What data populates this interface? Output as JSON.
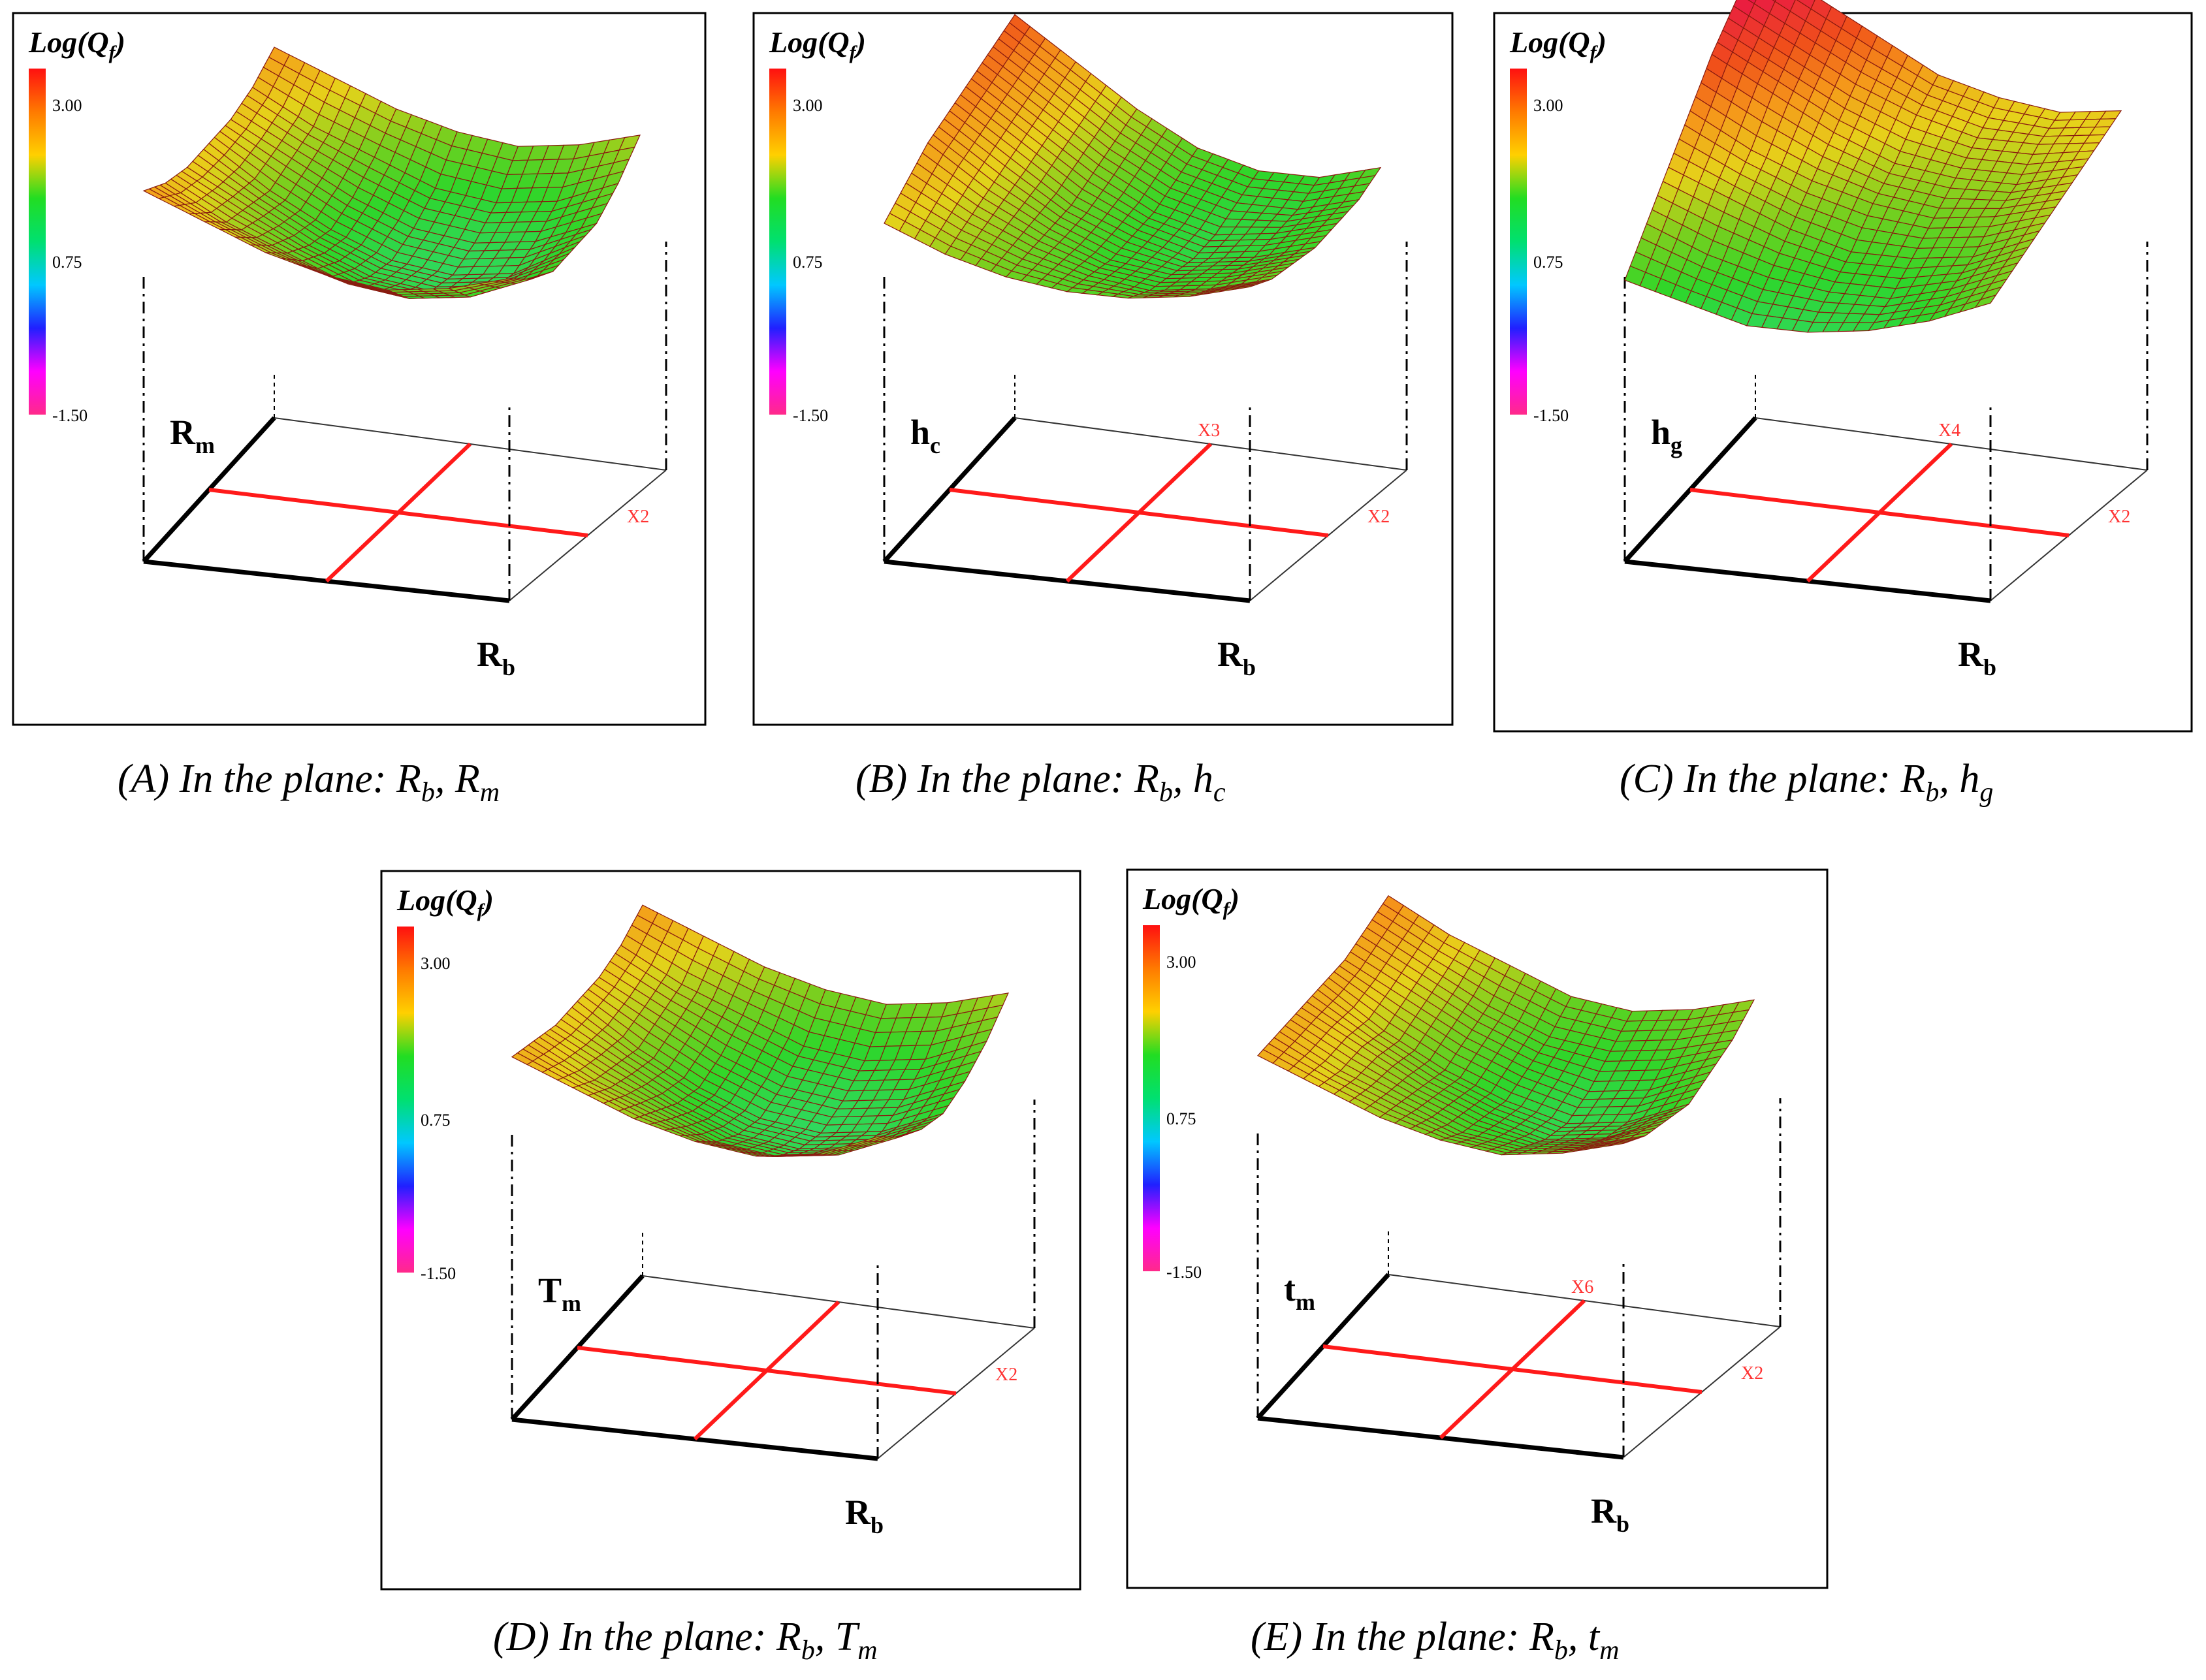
{
  "figure": {
    "colorbar": {
      "title": "Log(Q",
      "title_sub": "f",
      "title_close": ")",
      "ticks": [
        "3.00",
        "0.75",
        "-1.50"
      ],
      "stops": [
        "#ff2a8a",
        "#ff00ff",
        "#2020ff",
        "#00c8ff",
        "#00e070",
        "#22dd22",
        "#ffd000",
        "#ff7a00",
        "#ff1010"
      ]
    },
    "palette": {
      "frame": "#000000",
      "grid_lines": "#ff1a1a",
      "factor_label": "#ff3333",
      "floor_front": "#000000",
      "floor_back": "#333333"
    }
  },
  "chart_data": [
    {
      "type": "surface",
      "panel": "A",
      "x_axis_label": "R",
      "x_axis_sub": "b",
      "y_axis_label": "R",
      "y_axis_sub": "m",
      "floor_marker": "X2",
      "z_label": "Log(Qf)",
      "zlim": [
        -1.5,
        3.0
      ],
      "grid_rows": 7,
      "grid_cols": 7,
      "z_grid": [
        [
          2.5,
          2.2,
          1.9,
          1.7,
          1.6,
          1.7,
          1.9
        ],
        [
          2.3,
          1.9,
          1.6,
          1.3,
          1.2,
          1.3,
          1.6
        ],
        [
          2.2,
          1.8,
          1.4,
          1.1,
          1.0,
          1.1,
          1.4
        ],
        [
          2.2,
          1.7,
          1.3,
          1.0,
          0.9,
          1.0,
          1.4
        ],
        [
          2.2,
          1.8,
          1.4,
          1.1,
          1.0,
          1.1,
          1.4
        ],
        [
          2.3,
          1.9,
          1.6,
          1.3,
          1.2,
          1.3,
          1.6
        ],
        [
          2.5,
          2.2,
          1.9,
          1.7,
          1.6,
          1.7,
          1.9
        ]
      ],
      "caption": {
        "pre": "(A) In the plane: R",
        "sub1": "b",
        "mid": ", R",
        "sub2": "m"
      }
    },
    {
      "type": "surface",
      "panel": "B",
      "x_axis_label": "R",
      "x_axis_sub": "b",
      "y_axis_label": "h",
      "y_axis_sub": "c",
      "floor_marker": "X2",
      "floor_marker_2": "X3",
      "z_label": "Log(Qf)",
      "zlim": [
        -1.5,
        3.0
      ],
      "grid_rows": 7,
      "grid_cols": 7,
      "z_grid": [
        [
          2.1,
          1.8,
          1.6,
          1.5,
          1.5,
          1.6,
          1.8
        ],
        [
          2.3,
          1.9,
          1.6,
          1.4,
          1.3,
          1.4,
          1.6
        ],
        [
          2.5,
          2.0,
          1.6,
          1.3,
          1.2,
          1.3,
          1.5
        ],
        [
          2.6,
          2.1,
          1.6,
          1.3,
          1.1,
          1.2,
          1.4
        ],
        [
          2.7,
          2.2,
          1.7,
          1.3,
          1.1,
          1.2,
          1.4
        ],
        [
          2.8,
          2.3,
          1.8,
          1.4,
          1.2,
          1.2,
          1.4
        ],
        [
          2.9,
          2.4,
          1.9,
          1.5,
          1.3,
          1.3,
          1.5
        ]
      ],
      "caption": {
        "pre": "(B) In the plane: R",
        "sub1": "b",
        "mid": ", h",
        "sub2": "c"
      }
    },
    {
      "type": "surface",
      "panel": "C",
      "x_axis_label": "R",
      "x_axis_sub": "b",
      "y_axis_label": "h",
      "y_axis_sub": "g",
      "floor_marker": "X2",
      "floor_marker_2": "X4",
      "z_label": "Log(Qf)",
      "zlim": [
        -1.5,
        3.0
      ],
      "grid_rows": 7,
      "grid_cols": 7,
      "z_grid": [
        [
          1.4,
          1.2,
          1.0,
          1.0,
          1.1,
          1.3,
          1.6
        ],
        [
          1.8,
          1.5,
          1.3,
          1.2,
          1.2,
          1.4,
          1.7
        ],
        [
          2.2,
          1.9,
          1.6,
          1.4,
          1.4,
          1.5,
          1.8
        ],
        [
          2.6,
          2.2,
          1.9,
          1.7,
          1.6,
          1.7,
          1.9
        ],
        [
          3.0,
          2.6,
          2.2,
          1.9,
          1.8,
          1.8,
          2.0
        ],
        [
          3.3,
          2.9,
          2.5,
          2.2,
          2.0,
          2.0,
          2.1
        ],
        [
          3.6,
          3.2,
          2.8,
          2.4,
          2.2,
          2.1,
          2.2
        ]
      ],
      "caption": {
        "pre": "(C) In the plane: R",
        "sub1": "b",
        "mid": ", h",
        "sub2": "g"
      }
    },
    {
      "type": "surface",
      "panel": "D",
      "x_axis_label": "R",
      "x_axis_sub": "b",
      "y_axis_label": "T",
      "y_axis_sub": "m",
      "floor_marker": "X2",
      "z_label": "Log(Qf)",
      "zlim": [
        -1.5,
        3.0
      ],
      "grid_rows": 7,
      "grid_cols": 7,
      "z_grid": [
        [
          2.4,
          2.1,
          1.8,
          1.6,
          1.5,
          1.6,
          1.9
        ],
        [
          2.3,
          1.9,
          1.6,
          1.3,
          1.2,
          1.3,
          1.6
        ],
        [
          2.2,
          1.8,
          1.4,
          1.1,
          1.0,
          1.1,
          1.4
        ],
        [
          2.2,
          1.7,
          1.3,
          1.0,
          0.9,
          1.0,
          1.3
        ],
        [
          2.2,
          1.8,
          1.4,
          1.1,
          1.0,
          1.1,
          1.4
        ],
        [
          2.3,
          1.9,
          1.6,
          1.3,
          1.2,
          1.3,
          1.6
        ],
        [
          2.5,
          2.2,
          1.9,
          1.7,
          1.6,
          1.7,
          1.9
        ]
      ],
      "caption": {
        "pre": "(D) In the plane: R",
        "sub1": "b",
        "mid": ", T",
        "sub2": "m"
      }
    },
    {
      "type": "surface",
      "panel": "E",
      "x_axis_label": "R",
      "x_axis_sub": "b",
      "y_axis_label": "t",
      "y_axis_sub": "m",
      "floor_marker": "X2",
      "floor_marker_2": "X6",
      "z_label": "Log(Qf)",
      "zlim": [
        -1.5,
        3.0
      ],
      "grid_rows": 7,
      "grid_cols": 7,
      "z_grid": [
        [
          2.4,
          2.1,
          1.8,
          1.6,
          1.5,
          1.6,
          1.8
        ],
        [
          2.4,
          2.0,
          1.7,
          1.4,
          1.3,
          1.4,
          1.6
        ],
        [
          2.4,
          2.0,
          1.6,
          1.3,
          1.1,
          1.2,
          1.5
        ],
        [
          2.4,
          1.9,
          1.5,
          1.2,
          1.0,
          1.1,
          1.4
        ],
        [
          2.4,
          2.0,
          1.6,
          1.3,
          1.1,
          1.2,
          1.5
        ],
        [
          2.5,
          2.1,
          1.7,
          1.4,
          1.3,
          1.4,
          1.6
        ],
        [
          2.6,
          2.2,
          1.9,
          1.6,
          1.5,
          1.6,
          1.8
        ]
      ],
      "caption": {
        "pre": "(E) In the plane: R",
        "sub1": "b",
        "mid": ", t",
        "sub2": "m"
      }
    }
  ]
}
